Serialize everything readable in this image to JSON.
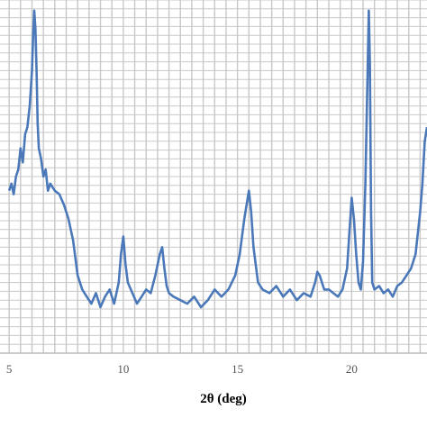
{
  "chart_data": {
    "type": "line",
    "title": "",
    "xlabel": "2θ (deg)",
    "ylabel": "",
    "xlim": [
      4.6,
      23.3
    ],
    "ylim": [
      0,
      100
    ],
    "xticks": [
      5,
      10,
      15,
      20
    ],
    "x_minor_grid_step": 0.5,
    "grid": true,
    "legend": "none",
    "series": [
      {
        "color": "#4a78b8",
        "x": [
          5.0,
          5.1,
          5.2,
          5.3,
          5.4,
          5.5,
          5.6,
          5.7,
          5.8,
          5.9,
          6.0,
          6.05,
          6.1,
          6.15,
          6.2,
          6.25,
          6.3,
          6.4,
          6.5,
          6.6,
          6.7,
          6.8,
          7.0,
          7.2,
          7.4,
          7.6,
          7.8,
          8.0,
          8.2,
          8.4,
          8.6,
          8.8,
          9.0,
          9.2,
          9.4,
          9.6,
          9.8,
          9.9,
          10.0,
          10.1,
          10.2,
          10.4,
          10.6,
          10.8,
          11.0,
          11.2,
          11.4,
          11.6,
          11.7,
          11.8,
          11.9,
          12.0,
          12.2,
          12.5,
          12.8,
          13.1,
          13.4,
          13.7,
          14.0,
          14.3,
          14.6,
          14.9,
          15.1,
          15.3,
          15.5,
          15.6,
          15.7,
          15.9,
          16.1,
          16.4,
          16.7,
          17.0,
          17.3,
          17.6,
          17.9,
          18.2,
          18.4,
          18.5,
          18.6,
          18.8,
          19.0,
          19.2,
          19.4,
          19.6,
          19.8,
          19.9,
          20.0,
          20.1,
          20.2,
          20.3,
          20.4,
          20.5,
          20.6,
          20.7,
          20.75,
          20.8,
          20.85,
          20.9,
          21.0,
          21.2,
          21.4,
          21.6,
          21.8,
          22.0,
          22.2,
          22.4,
          22.6,
          22.8,
          23.0,
          23.1,
          23.2,
          23.3
        ],
        "y": [
          46,
          48,
          45,
          50,
          52,
          58,
          54,
          62,
          64,
          70,
          80,
          90,
          97,
          92,
          80,
          65,
          58,
          55,
          50,
          52,
          46,
          48,
          46,
          45,
          42,
          38,
          32,
          22,
          18,
          16,
          14,
          17,
          13,
          16,
          18,
          14,
          20,
          28,
          33,
          25,
          20,
          17,
          14,
          16,
          18,
          17,
          22,
          28,
          30,
          24,
          19,
          17,
          16,
          15,
          14,
          16,
          13,
          15,
          18,
          16,
          18,
          22,
          28,
          38,
          46,
          40,
          30,
          20,
          18,
          17,
          19,
          16,
          18,
          15,
          17,
          16,
          20,
          23,
          22,
          18,
          18,
          17,
          16,
          18,
          24,
          34,
          44,
          38,
          28,
          20,
          18,
          26,
          48,
          80,
          97,
          82,
          40,
          20,
          18,
          19,
          17,
          18,
          16,
          19,
          20,
          22,
          24,
          28,
          40,
          48,
          60,
          64
        ]
      }
    ]
  }
}
